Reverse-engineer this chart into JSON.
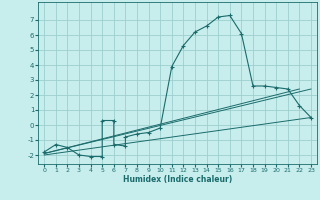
{
  "xlabel": "Humidex (Indice chaleur)",
  "background_color": "#c8eded",
  "grid_color": "#9ecece",
  "line_color": "#1a6b6b",
  "xlim": [
    -0.5,
    23.5
  ],
  "ylim": [
    -2.6,
    8.2
  ],
  "xticks": [
    0,
    1,
    2,
    3,
    4,
    5,
    6,
    7,
    8,
    9,
    10,
    11,
    12,
    13,
    14,
    15,
    16,
    17,
    18,
    19,
    20,
    21,
    22,
    23
  ],
  "yticks": [
    -2,
    -1,
    0,
    1,
    2,
    3,
    4,
    5,
    6,
    7
  ],
  "curve_x": [
    0,
    1,
    2,
    3,
    4,
    5,
    5,
    6,
    6,
    7,
    7,
    8,
    9,
    10,
    11,
    12,
    13,
    14,
    15,
    16,
    17,
    18,
    19,
    20,
    21,
    22,
    23
  ],
  "curve_y": [
    -1.8,
    -1.3,
    -1.5,
    -2.0,
    -2.1,
    -2.1,
    0.3,
    0.3,
    -1.3,
    -1.4,
    -0.8,
    -0.6,
    -0.5,
    -0.2,
    3.9,
    5.3,
    6.2,
    6.6,
    7.2,
    7.3,
    6.1,
    2.6,
    2.6,
    2.5,
    2.4,
    1.3,
    0.5
  ],
  "line1_x": [
    0,
    23
  ],
  "line1_y": [
    -2.0,
    0.5
  ],
  "line2_x": [
    0,
    23
  ],
  "line2_y": [
    -1.9,
    2.4
  ],
  "line3_x": [
    0,
    22
  ],
  "line3_y": [
    -1.9,
    2.4
  ]
}
